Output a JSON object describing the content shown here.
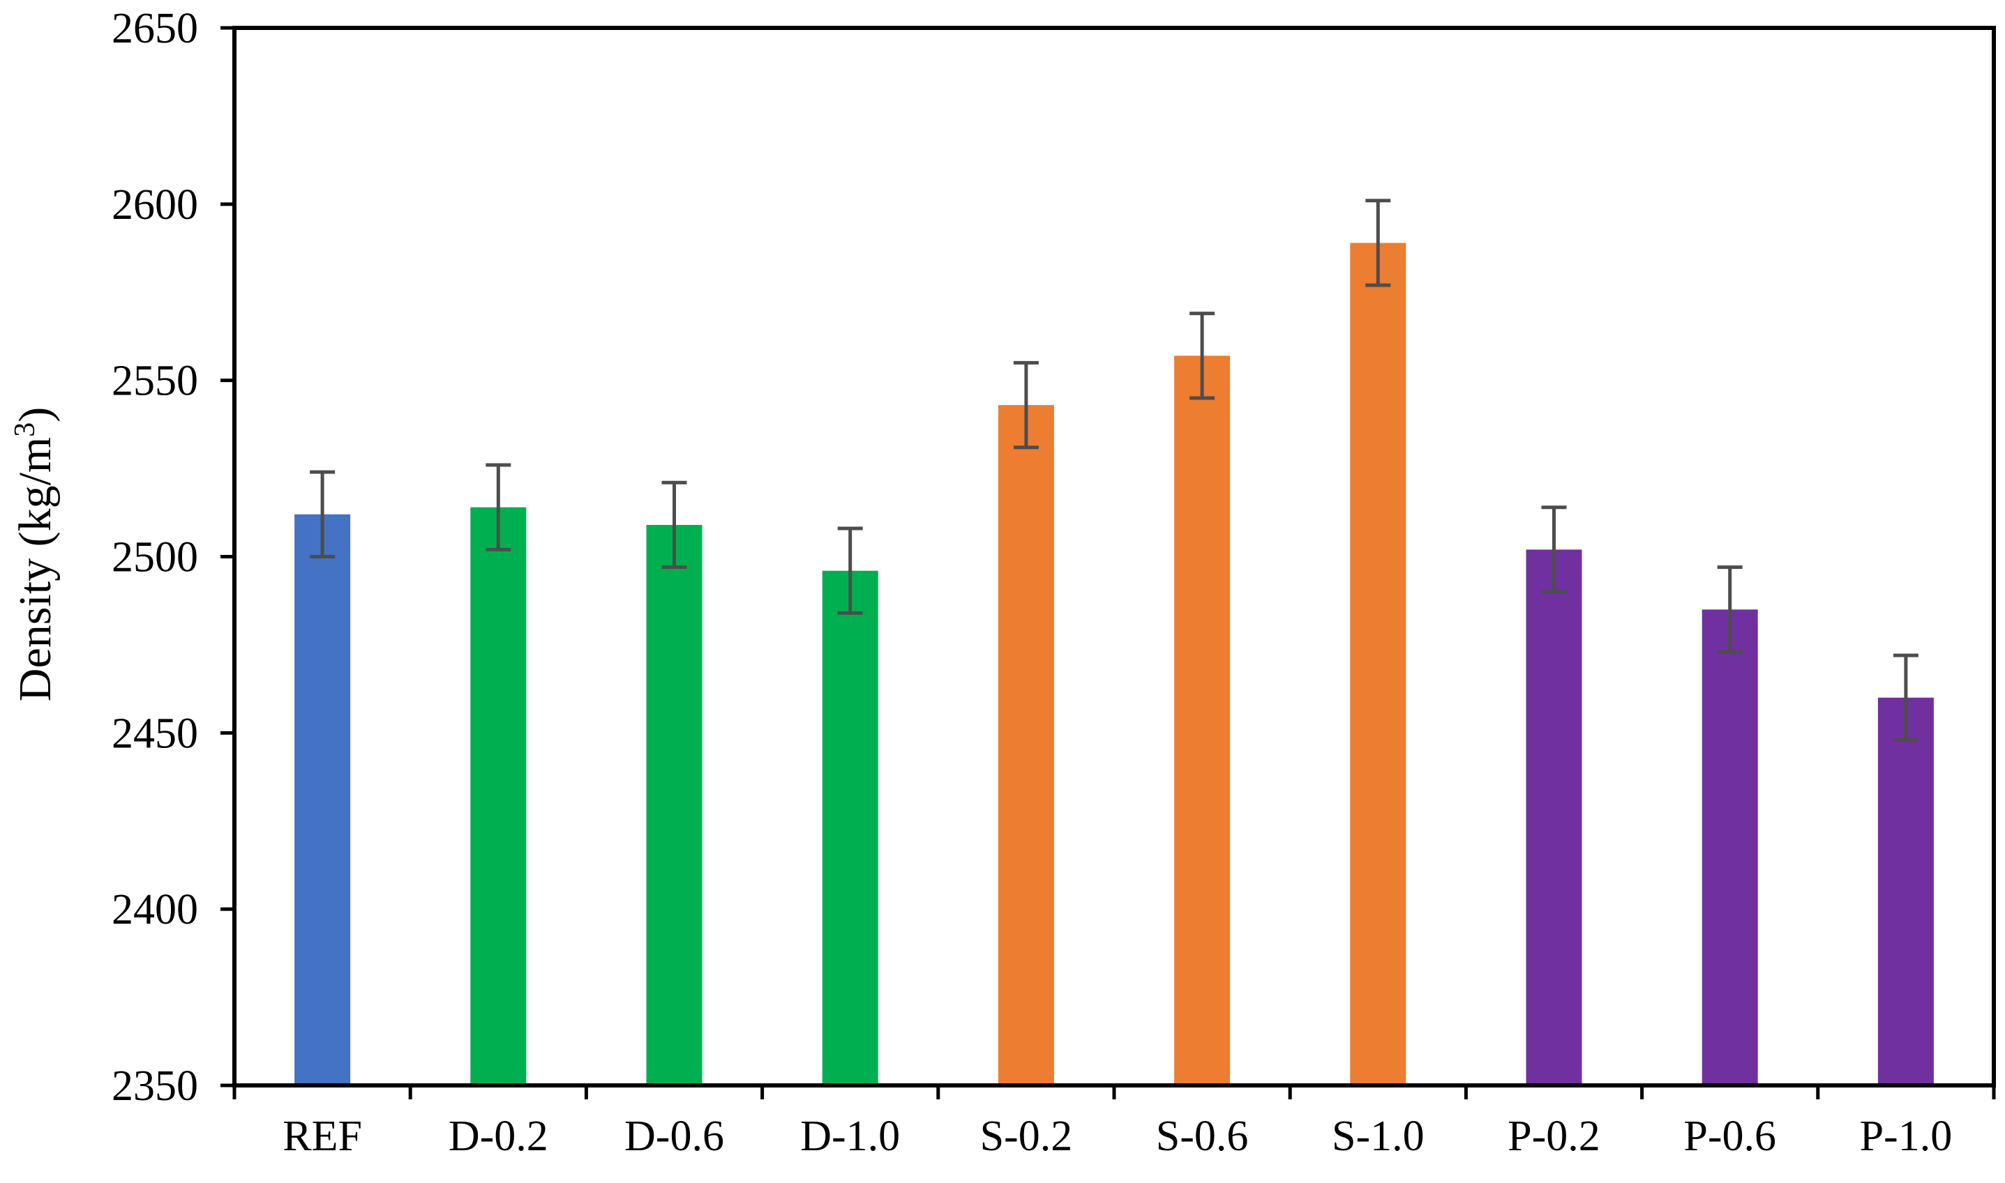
{
  "chart_data": {
    "type": "bar",
    "title": "",
    "xlabel": "",
    "ylabel": "Density (kg/m",
    "ylabel_superscript": "3",
    "ylabel_suffix": ")",
    "ylim": [
      2350,
      2650
    ],
    "yticks": [
      2350,
      2400,
      2450,
      2500,
      2550,
      2600,
      2650
    ],
    "grid": false,
    "legend": "none",
    "categories": [
      "REF",
      "D-0.2",
      "D-0.6",
      "D-1.0",
      "S-0.2",
      "S-0.6",
      "S-1.0",
      "P-0.2",
      "P-0.6",
      "P-1.0"
    ],
    "values": [
      2512,
      2514,
      2509,
      2496,
      2543,
      2557,
      2589,
      2502,
      2485,
      2460
    ],
    "errors": [
      12,
      12,
      12,
      12,
      12,
      12,
      12,
      12,
      12,
      12
    ],
    "colors": [
      "#4472C4",
      "#00B050",
      "#00B050",
      "#00B050",
      "#ED7D31",
      "#ED7D31",
      "#ED7D31",
      "#7030A0",
      "#7030A0",
      "#7030A0"
    ],
    "error_bar_color": "#4D4D4D",
    "axis_color": "#000000"
  }
}
